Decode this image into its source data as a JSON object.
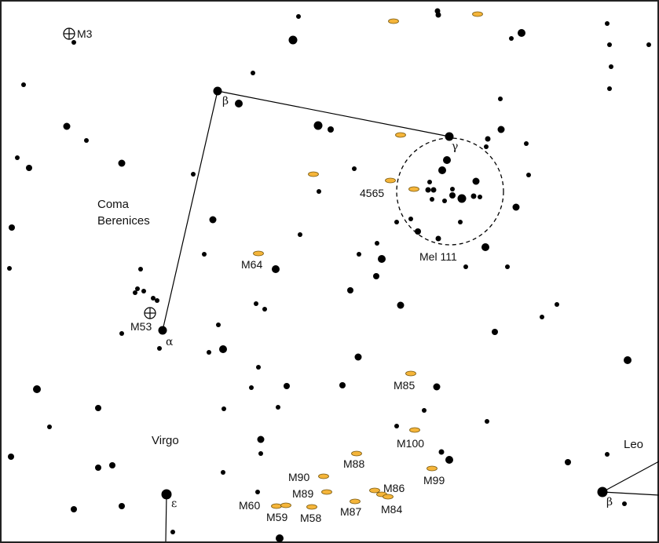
{
  "constellation_labels": {
    "coma": [
      "Coma",
      "Berenices"
    ],
    "virgo": "Virgo",
    "leo": "Leo"
  },
  "star_labels": {
    "coma_beta": "β",
    "coma_gamma": "γ",
    "coma_alpha": "α",
    "virgo_epsilon": "ε",
    "leo_beta": "β"
  },
  "object_labels": {
    "m3": "M3",
    "m53": "M53",
    "m64": "M64",
    "ngc4565": "4565",
    "mel111": "Mel 111",
    "m85": "M85",
    "m100": "M100",
    "m88": "M88",
    "m99": "M99",
    "m90": "M90",
    "m89": "M89",
    "m86": "M86",
    "m84": "M84",
    "m87": "M87",
    "m60": "M60",
    "m59": "M59",
    "m58": "M58"
  },
  "colors": {
    "galaxy_fill": "#f5b53a",
    "galaxy_stroke": "#7a5a10",
    "star": "#000000",
    "frame": "#222222",
    "background": "#ffffff"
  }
}
